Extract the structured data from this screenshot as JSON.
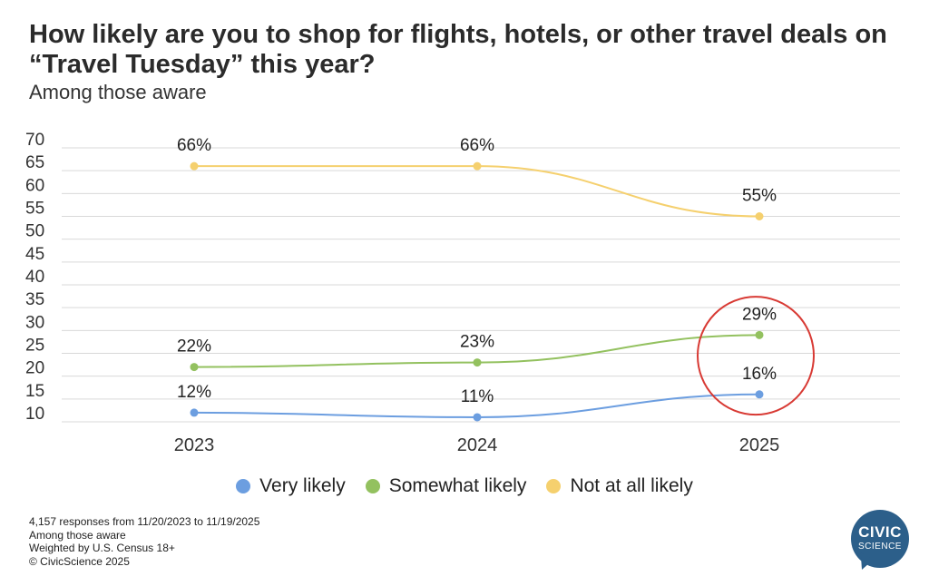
{
  "title": "How likely are you to shop for flights, hotels, or other travel deals on “Travel Tuesday” this year?",
  "subtitle": "Among those aware",
  "chart_data": {
    "type": "line",
    "x": [
      "2023",
      "2024",
      "2025"
    ],
    "series": [
      {
        "name": "Very likely",
        "values": [
          12,
          11,
          16
        ],
        "color": "#6c9ee0"
      },
      {
        "name": "Somewhat likely",
        "values": [
          22,
          23,
          29
        ],
        "color": "#93c15f"
      },
      {
        "name": "Not at all likely",
        "values": [
          66,
          66,
          55
        ],
        "color": "#f5d06e"
      }
    ],
    "ylim": [
      10,
      70
    ],
    "yticks": [
      10,
      15,
      20,
      25,
      30,
      35,
      40,
      45,
      50,
      55,
      60,
      65,
      70
    ],
    "grid": true,
    "legend": "bottom",
    "highlight": {
      "category": "2025",
      "shape": "circle",
      "color": "#d83a34"
    }
  },
  "legend": [
    {
      "label": "Very likely",
      "color": "#6c9ee0"
    },
    {
      "label": "Somewhat likely",
      "color": "#93c15f"
    },
    {
      "label": "Not at all likely",
      "color": "#f5d06e"
    }
  ],
  "footnotes": [
    "4,157 responses from 11/20/2023 to 11/19/2025",
    "Among those aware",
    "Weighted by U.S. Census 18+",
    "© CivicScience 2025"
  ],
  "logo": {
    "line1": "CIVIC",
    "line2": "SCIENCE"
  }
}
